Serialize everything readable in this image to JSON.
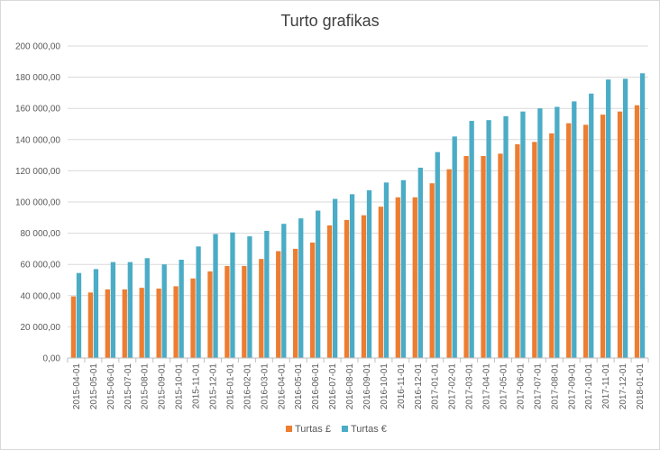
{
  "chart_data": {
    "type": "bar",
    "title": "Turto grafikas",
    "xlabel": "",
    "ylabel": "",
    "ylim": [
      0,
      200000
    ],
    "yticks": [
      0,
      20000,
      40000,
      60000,
      80000,
      100000,
      120000,
      140000,
      160000,
      180000,
      200000
    ],
    "ytick_labels": [
      "0,00",
      "20 000,00",
      "40 000,00",
      "60 000,00",
      "80 000,00",
      "100 000,00",
      "120 000,00",
      "140 000,00",
      "160 000,00",
      "180 000,00",
      "200 000,00"
    ],
    "grid": true,
    "legend_position": "bottom",
    "categories": [
      "2015-04-01",
      "2015-05-01",
      "2015-06-01",
      "2015-07-01",
      "2015-08-01",
      "2015-09-01",
      "2015-10-01",
      "2015-11-01",
      "2015-12-01",
      "2016-01-01",
      "2016-02-01",
      "2016-03-01",
      "2016-04-01",
      "2016-05-01",
      "2016-06-01",
      "2016-07-01",
      "2016-08-01",
      "2016-09-01",
      "2016-10-01",
      "2016-11-01",
      "2016-12-01",
      "2017-01-01",
      "2017-02-01",
      "2017-03-01",
      "2017-04-01",
      "2017-05-01",
      "2017-06-01",
      "2017-07-01",
      "2017-08-01",
      "2017-09-01",
      "2017-10-01",
      "2017-11-01",
      "2017-12-01",
      "2018-01-01"
    ],
    "series": [
      {
        "name": "Turtas £",
        "color": "#ed7d31",
        "values": [
          39500,
          42000,
          44000,
          44000,
          45000,
          44500,
          46000,
          51000,
          55500,
          59000,
          59000,
          63500,
          68500,
          70000,
          74000,
          85000,
          88500,
          91500,
          97000,
          103000,
          103000,
          112000,
          121000,
          129500,
          129500,
          131000,
          137000,
          138500,
          144000,
          150500,
          149500,
          156000,
          158000,
          162000
        ]
      },
      {
        "name": "Turtas €",
        "color": "#4bacc6",
        "values": [
          54500,
          57000,
          61500,
          61500,
          64000,
          60000,
          63000,
          71500,
          79500,
          80500,
          78000,
          81500,
          86000,
          89500,
          94500,
          102000,
          105000,
          107500,
          112500,
          114000,
          122000,
          132000,
          142000,
          152000,
          152500,
          155000,
          158000,
          160000,
          161000,
          164500,
          169500,
          178500,
          179000,
          182500
        ]
      }
    ]
  }
}
